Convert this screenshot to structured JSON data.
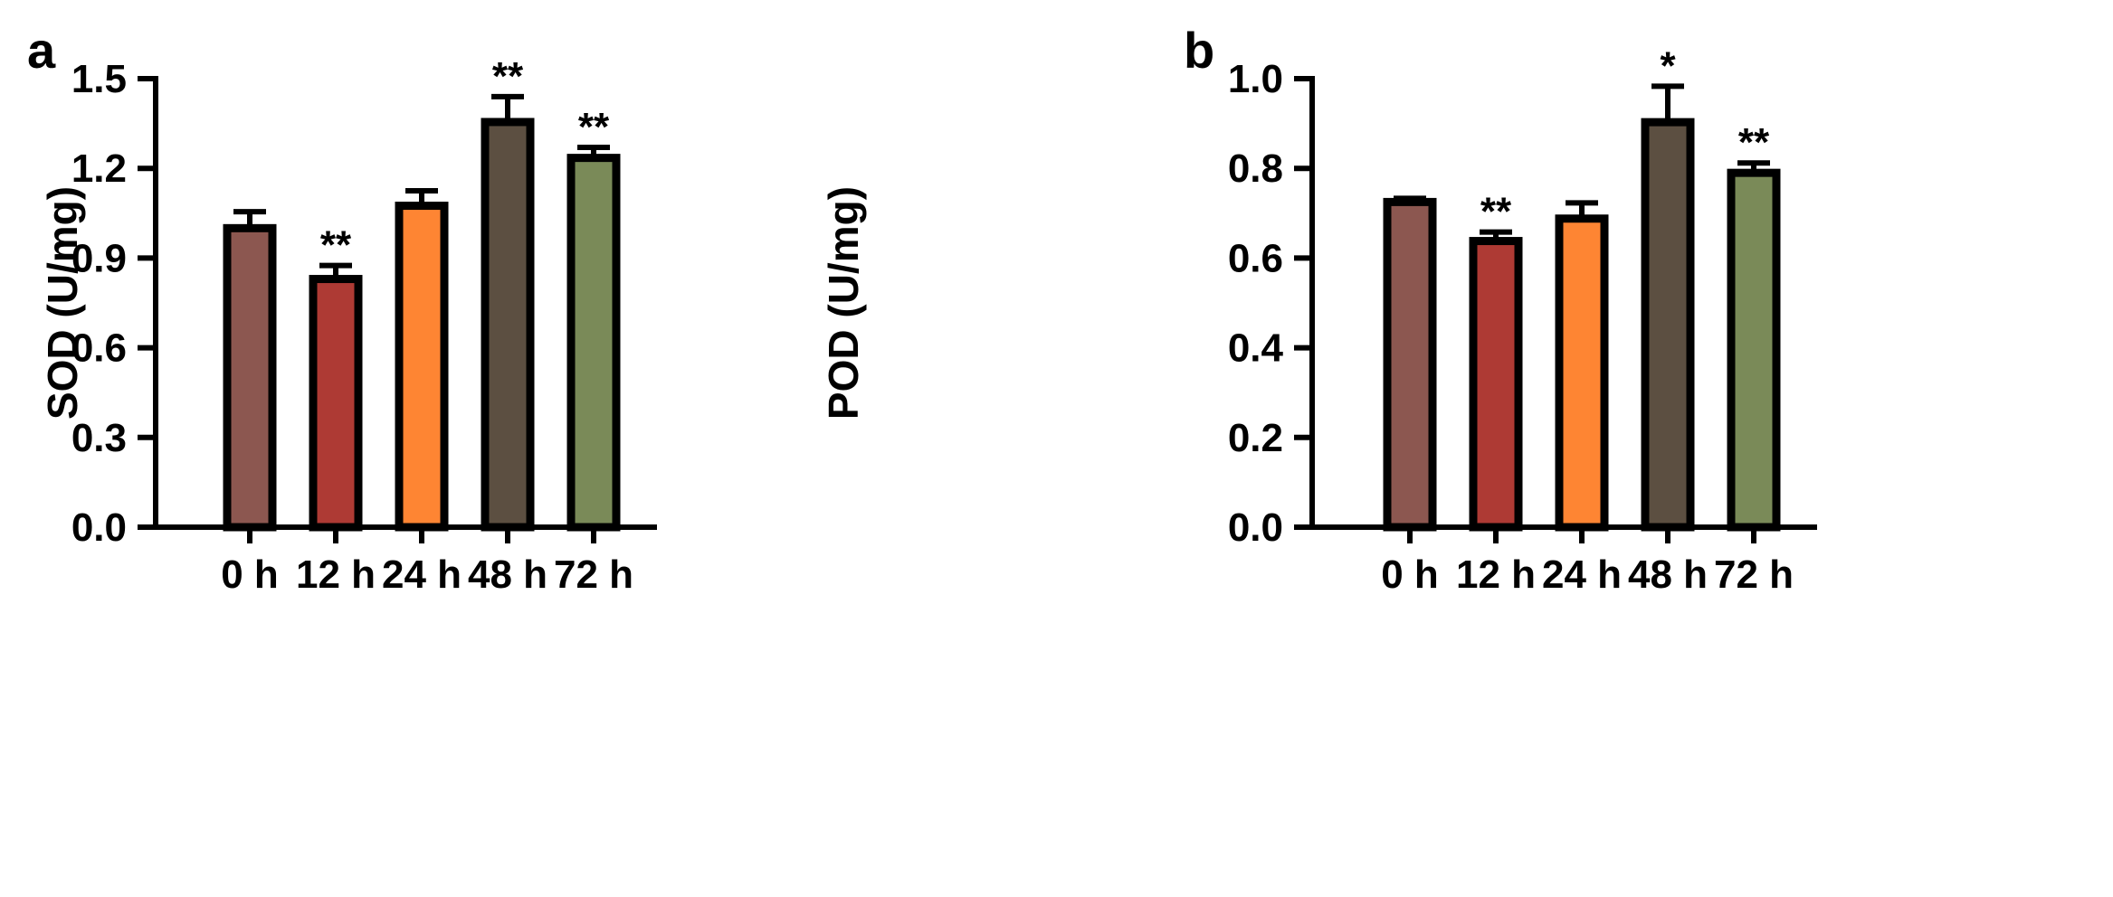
{
  "chart_data": [
    {
      "type": "bar",
      "panel": "a",
      "title": "",
      "xlabel": "",
      "ylabel": "SOD (U/mg)",
      "ylim": [
        0,
        1.5
      ],
      "yticks": [
        0.0,
        0.3,
        0.6,
        0.9,
        1.2,
        1.5
      ],
      "ytick_labels": [
        "0.0",
        "0.3",
        "0.6",
        "0.9",
        "1.2",
        "1.5"
      ],
      "categories": [
        "0 h",
        "12 h",
        "24 h",
        "48 h",
        "72 h"
      ],
      "values": [
        1.0,
        0.83,
        1.075,
        1.355,
        1.235
      ],
      "errors": [
        0.055,
        0.045,
        0.05,
        0.085,
        0.035
      ],
      "significance": [
        "",
        "**",
        "",
        "**",
        "**"
      ],
      "colors": [
        "#8c5750",
        "#ae3a34",
        "#fe8533",
        "#5c4f41",
        "#7a8a58"
      ],
      "grid": false
    },
    {
      "type": "bar",
      "panel": "b",
      "title": "",
      "xlabel": "",
      "ylabel": "POD (U/mg)",
      "ylim": [
        0,
        1.0
      ],
      "yticks": [
        0.0,
        0.2,
        0.4,
        0.6,
        0.8,
        1.0
      ],
      "ytick_labels": [
        "0.0",
        "0.2",
        "0.4",
        "0.6",
        "0.8",
        "1.0"
      ],
      "categories": [
        "0 h",
        "12 h",
        "24 h",
        "48 h",
        "72 h"
      ],
      "values": [
        0.725,
        0.638,
        0.688,
        0.903,
        0.79
      ],
      "errors": [
        0.008,
        0.02,
        0.035,
        0.08,
        0.022
      ],
      "significance": [
        "",
        "**",
        "",
        "*",
        "**"
      ],
      "colors": [
        "#8c5750",
        "#ae3a34",
        "#fe8533",
        "#5c4f41",
        "#7a8a58"
      ],
      "grid": false
    }
  ]
}
